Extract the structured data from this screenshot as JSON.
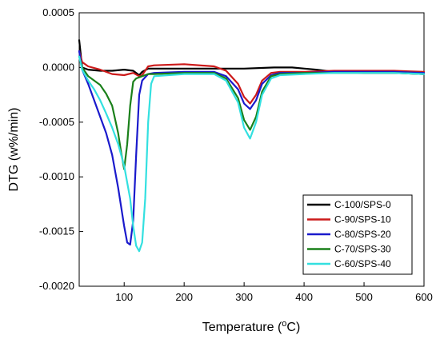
{
  "chart_data": {
    "type": "line",
    "title": "",
    "xlabel": "Temperature (",
    "xlabel_sup": "o",
    "xlabel_suffix": "C)",
    "ylabel": "DTG (w%/min)",
    "xlim": [
      25,
      600
    ],
    "ylim": [
      -0.002,
      0.0005
    ],
    "x_ticks": [
      100,
      200,
      300,
      400,
      500,
      600
    ],
    "x_tick_labels": [
      "100",
      "200",
      "300",
      "400",
      "500",
      "600"
    ],
    "y_ticks": [
      0.0005,
      0,
      -0.0005,
      -0.001,
      -0.0015,
      -0.002
    ],
    "y_tick_labels": [
      "0.0005",
      "0.0000",
      "-0.0005",
      "-0.0010",
      "-0.0015",
      "-0.0020"
    ],
    "grid": false,
    "legend_position": "bottom-right",
    "series": [
      {
        "name": "C-100/SPS-0",
        "color": "#000000",
        "x": [
          25,
          30,
          40,
          60,
          80,
          100,
          115,
          125,
          130,
          140,
          150,
          200,
          250,
          300,
          350,
          380,
          420,
          450,
          500,
          550,
          600
        ],
        "y": [
          0.00025,
          0.0,
          -2e-05,
          -3e-05,
          -3e-05,
          -2e-05,
          -3e-05,
          -7e-05,
          -4e-05,
          -1e-05,
          -1e-05,
          -1e-05,
          -1e-05,
          -1e-05,
          0.0,
          0.0,
          -2e-05,
          -4e-05,
          -5e-05,
          -5e-05,
          -6e-05
        ]
      },
      {
        "name": "C-90/SPS-10",
        "color": "#cc1a1a",
        "x": [
          25,
          30,
          40,
          60,
          80,
          100,
          115,
          125,
          130,
          140,
          150,
          200,
          250,
          270,
          290,
          300,
          310,
          320,
          330,
          345,
          360,
          400,
          450,
          500,
          550,
          600
        ],
        "y": [
          0.00015,
          5e-05,
          1e-05,
          -2e-05,
          -6e-05,
          -7e-05,
          -5e-05,
          -8e-05,
          -7e-05,
          1e-05,
          2e-05,
          3e-05,
          1e-05,
          -3e-05,
          -0.00015,
          -0.00027,
          -0.00033,
          -0.00025,
          -0.00012,
          -5e-05,
          -4e-05,
          -4e-05,
          -3e-05,
          -3e-05,
          -3e-05,
          -4e-05
        ]
      },
      {
        "name": "C-80/SPS-20",
        "color": "#1a1acc",
        "x": [
          25,
          30,
          40,
          50,
          60,
          70,
          80,
          90,
          100,
          105,
          110,
          115,
          120,
          125,
          130,
          140,
          150,
          200,
          250,
          270,
          290,
          300,
          310,
          320,
          330,
          345,
          360,
          400,
          450,
          500,
          550,
          600
        ],
        "y": [
          0.00015,
          -2e-05,
          -0.00015,
          -0.0003,
          -0.00045,
          -0.0006,
          -0.0008,
          -0.0011,
          -0.00145,
          -0.0016,
          -0.00162,
          -0.0014,
          -0.0008,
          -0.00025,
          -0.00012,
          -6e-05,
          -5e-05,
          -4e-05,
          -4e-05,
          -8e-05,
          -0.0002,
          -0.00033,
          -0.00038,
          -0.0003,
          -0.00015,
          -7e-05,
          -5e-05,
          -5e-05,
          -4e-05,
          -4e-05,
          -4e-05,
          -5e-05
        ]
      },
      {
        "name": "C-70/SPS-30",
        "color": "#1a801a",
        "x": [
          25,
          30,
          40,
          50,
          60,
          70,
          80,
          90,
          95,
          100,
          105,
          110,
          115,
          120,
          125,
          130,
          140,
          150,
          200,
          250,
          270,
          290,
          300,
          310,
          320,
          330,
          345,
          360,
          400,
          450,
          500,
          550,
          600
        ],
        "y": [
          0.0001,
          0.0,
          -8e-05,
          -0.00012,
          -0.00016,
          -0.00024,
          -0.00035,
          -0.0006,
          -0.00078,
          -0.00093,
          -0.0007,
          -0.00035,
          -0.00013,
          -0.0001,
          -9e-05,
          -8e-05,
          -6e-05,
          -6e-05,
          -5e-05,
          -5e-05,
          -0.0001,
          -0.00028,
          -0.00048,
          -0.00057,
          -0.00045,
          -0.00022,
          -8e-05,
          -6e-05,
          -5e-05,
          -5e-05,
          -5e-05,
          -5e-05,
          -6e-05
        ]
      },
      {
        "name": "C-60/SPS-40",
        "color": "#33e0e0",
        "x": [
          25,
          30,
          40,
          50,
          60,
          70,
          80,
          90,
          100,
          110,
          115,
          120,
          125,
          130,
          135,
          140,
          145,
          150,
          200,
          250,
          270,
          290,
          300,
          310,
          320,
          330,
          345,
          360,
          400,
          450,
          500,
          550,
          600
        ],
        "y": [
          0.0001,
          -2e-05,
          -0.00012,
          -0.0002,
          -0.0003,
          -0.00042,
          -0.00055,
          -0.0007,
          -0.0009,
          -0.0012,
          -0.00145,
          -0.00163,
          -0.00168,
          -0.0016,
          -0.0012,
          -0.0005,
          -0.00015,
          -8e-05,
          -6e-05,
          -6e-05,
          -0.00012,
          -0.00032,
          -0.00055,
          -0.00065,
          -0.0005,
          -0.00025,
          -0.0001,
          -7e-05,
          -6e-05,
          -5e-05,
          -5e-05,
          -5e-05,
          -6e-05
        ]
      }
    ]
  }
}
